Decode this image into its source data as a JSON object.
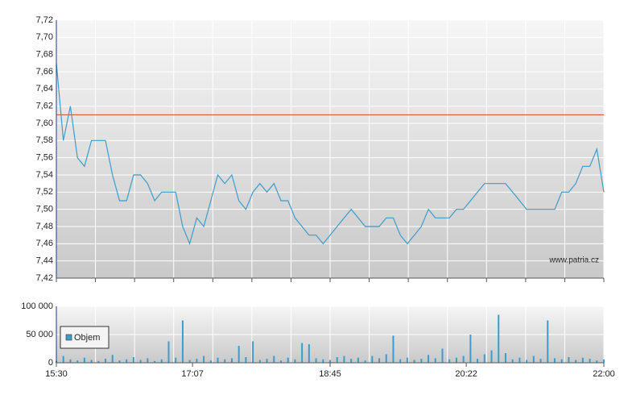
{
  "chart_data": {
    "type": "line",
    "x": [
      "15:30",
      "15:35",
      "15:40",
      "15:45",
      "15:50",
      "15:55",
      "16:00",
      "16:05",
      "16:10",
      "16:15",
      "16:20",
      "16:25",
      "16:30",
      "16:35",
      "16:40",
      "16:45",
      "16:50",
      "16:55",
      "17:00",
      "17:05",
      "17:10",
      "17:15",
      "17:20",
      "17:25",
      "17:30",
      "17:35",
      "17:40",
      "17:45",
      "17:50",
      "17:55",
      "18:00",
      "18:05",
      "18:10",
      "18:15",
      "18:20",
      "18:25",
      "18:30",
      "18:35",
      "18:40",
      "18:45",
      "18:50",
      "18:55",
      "19:00",
      "19:05",
      "19:10",
      "19:15",
      "19:20",
      "19:25",
      "19:30",
      "19:35",
      "19:40",
      "19:45",
      "19:50",
      "19:55",
      "20:00",
      "20:05",
      "20:10",
      "20:15",
      "20:20",
      "20:25",
      "20:30",
      "20:35",
      "20:40",
      "20:45",
      "20:50",
      "20:55",
      "21:00",
      "21:05",
      "21:10",
      "21:15",
      "21:20",
      "21:25",
      "21:30",
      "21:35",
      "21:40",
      "21:45",
      "21:50",
      "21:55",
      "22:00"
    ],
    "series": [
      {
        "color": "#3d9ccc",
        "axis": "y",
        "values": [
          7.67,
          7.58,
          7.62,
          7.56,
          7.55,
          7.58,
          7.58,
          7.58,
          7.54,
          7.51,
          7.51,
          7.54,
          7.54,
          7.53,
          7.51,
          7.52,
          7.52,
          7.52,
          7.48,
          7.46,
          7.49,
          7.48,
          7.51,
          7.54,
          7.53,
          7.54,
          7.51,
          7.5,
          7.52,
          7.53,
          7.52,
          7.53,
          7.51,
          7.51,
          7.49,
          7.48,
          7.47,
          7.47,
          7.46,
          7.47,
          7.48,
          7.49,
          7.5,
          7.49,
          7.48,
          7.48,
          7.48,
          7.49,
          7.49,
          7.47,
          7.46,
          7.47,
          7.48,
          7.5,
          7.49,
          7.49,
          7.49,
          7.5,
          7.5,
          7.51,
          7.52,
          7.53,
          7.53,
          7.53,
          7.53,
          7.52,
          7.51,
          7.5,
          7.5,
          7.5,
          7.5,
          7.5,
          7.52,
          7.52,
          7.53,
          7.55,
          7.55,
          7.57,
          7.52
        ]
      },
      {
        "name": "Objem",
        "color": "#3d9ccc",
        "axis": "y2",
        "values": [
          3000,
          12000,
          6000,
          4000,
          9000,
          5000,
          3000,
          7000,
          14000,
          4000,
          6000,
          10000,
          5000,
          8000,
          3000,
          6000,
          38000,
          9000,
          75000,
          5000,
          7000,
          12000,
          4000,
          9000,
          6000,
          8000,
          30000,
          10000,
          38000,
          5000,
          7000,
          12000,
          4000,
          9000,
          6000,
          35000,
          33000,
          8000,
          6000,
          5000,
          10000,
          12000,
          7000,
          9000,
          4000,
          12000,
          8000,
          15000,
          48000,
          6000,
          9000,
          5000,
          7000,
          14000,
          8000,
          25000,
          6000,
          9000,
          12000,
          50000,
          7000,
          15000,
          22000,
          85000,
          17000,
          6000,
          9000,
          5000,
          12000,
          7000,
          75000,
          8000,
          6000,
          10000,
          5000,
          9000,
          7000,
          4000,
          6000
        ]
      }
    ],
    "xlim": [
      "15:30",
      "22:00"
    ],
    "xticks": [
      "15:30",
      "17:07",
      "18:45",
      "20:22",
      "22:00"
    ],
    "ylim": [
      7.42,
      7.72
    ],
    "yticks": [
      {
        "value": 7.42,
        "label": "7,42"
      },
      {
        "value": 7.44,
        "label": "7,44"
      },
      {
        "value": 7.46,
        "label": "7,46"
      },
      {
        "value": 7.48,
        "label": "7,48"
      },
      {
        "value": 7.5,
        "label": "7,50"
      },
      {
        "value": 7.52,
        "label": "7,52"
      },
      {
        "value": 7.54,
        "label": "7,54"
      },
      {
        "value": 7.56,
        "label": "7,56"
      },
      {
        "value": 7.58,
        "label": "7,58"
      },
      {
        "value": 7.6,
        "label": "7,60"
      },
      {
        "value": 7.62,
        "label": "7,62"
      },
      {
        "value": 7.64,
        "label": "7,64"
      },
      {
        "value": 7.66,
        "label": "7,66"
      },
      {
        "value": 7.68,
        "label": "7,68"
      },
      {
        "value": 7.7,
        "label": "7,70"
      },
      {
        "value": 7.72,
        "label": "7,72"
      }
    ],
    "y2lim": [
      0,
      100000
    ],
    "y2ticks": [
      0,
      {
        "value": 50000,
        "label": "50 000"
      },
      {
        "value": 100000,
        "label": "100 000"
      }
    ],
    "reference_line": {
      "value": 7.61,
      "color": "#e0402a"
    },
    "grid": true,
    "legend": "lower-left",
    "watermark": "www.patria.cz"
  }
}
